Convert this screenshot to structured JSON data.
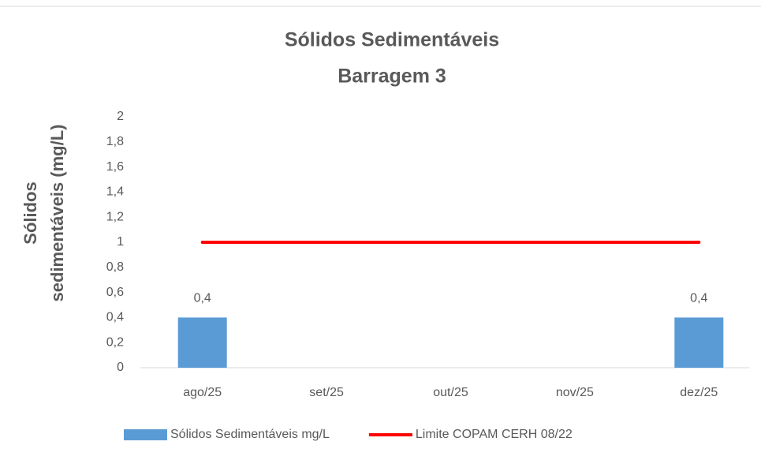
{
  "chart_data": {
    "type": "bar",
    "title": [
      "Sólidos Sedimentáveis",
      "Barragem 3"
    ],
    "y_label": [
      "Sólidos",
      "sedimentáveis (mg/L)"
    ],
    "categories": [
      "ago/25",
      "set/25",
      "out/25",
      "nov/25",
      "dez/25"
    ],
    "series": [
      {
        "name": "Sólidos Sedimentáveis mg/L",
        "type": "bar",
        "color": "#5b9bd5",
        "values": [
          0.4,
          null,
          null,
          null,
          0.4
        ],
        "value_labels": [
          "0,4",
          null,
          null,
          null,
          "0,4"
        ]
      },
      {
        "name": "Limite COPAM CERH 08/22",
        "type": "line",
        "color": "#ff0000",
        "values": [
          1,
          1,
          1,
          1,
          1
        ]
      }
    ],
    "ylim": [
      0,
      2
    ],
    "yticks": [
      0,
      {
        "value": 0.2,
        "label": "0,2"
      },
      {
        "value": 0.4,
        "label": "0,4"
      },
      {
        "value": 0.6,
        "label": "0,6"
      },
      {
        "value": 0.8,
        "label": "0,8"
      },
      1,
      {
        "value": 1.2,
        "label": "1,2"
      },
      {
        "value": 1.4,
        "label": "1,4"
      },
      {
        "value": 1.6,
        "label": "1,6"
      },
      {
        "value": 1.8,
        "label": "1,8"
      },
      2
    ],
    "grid": false,
    "legend": "bottom"
  }
}
